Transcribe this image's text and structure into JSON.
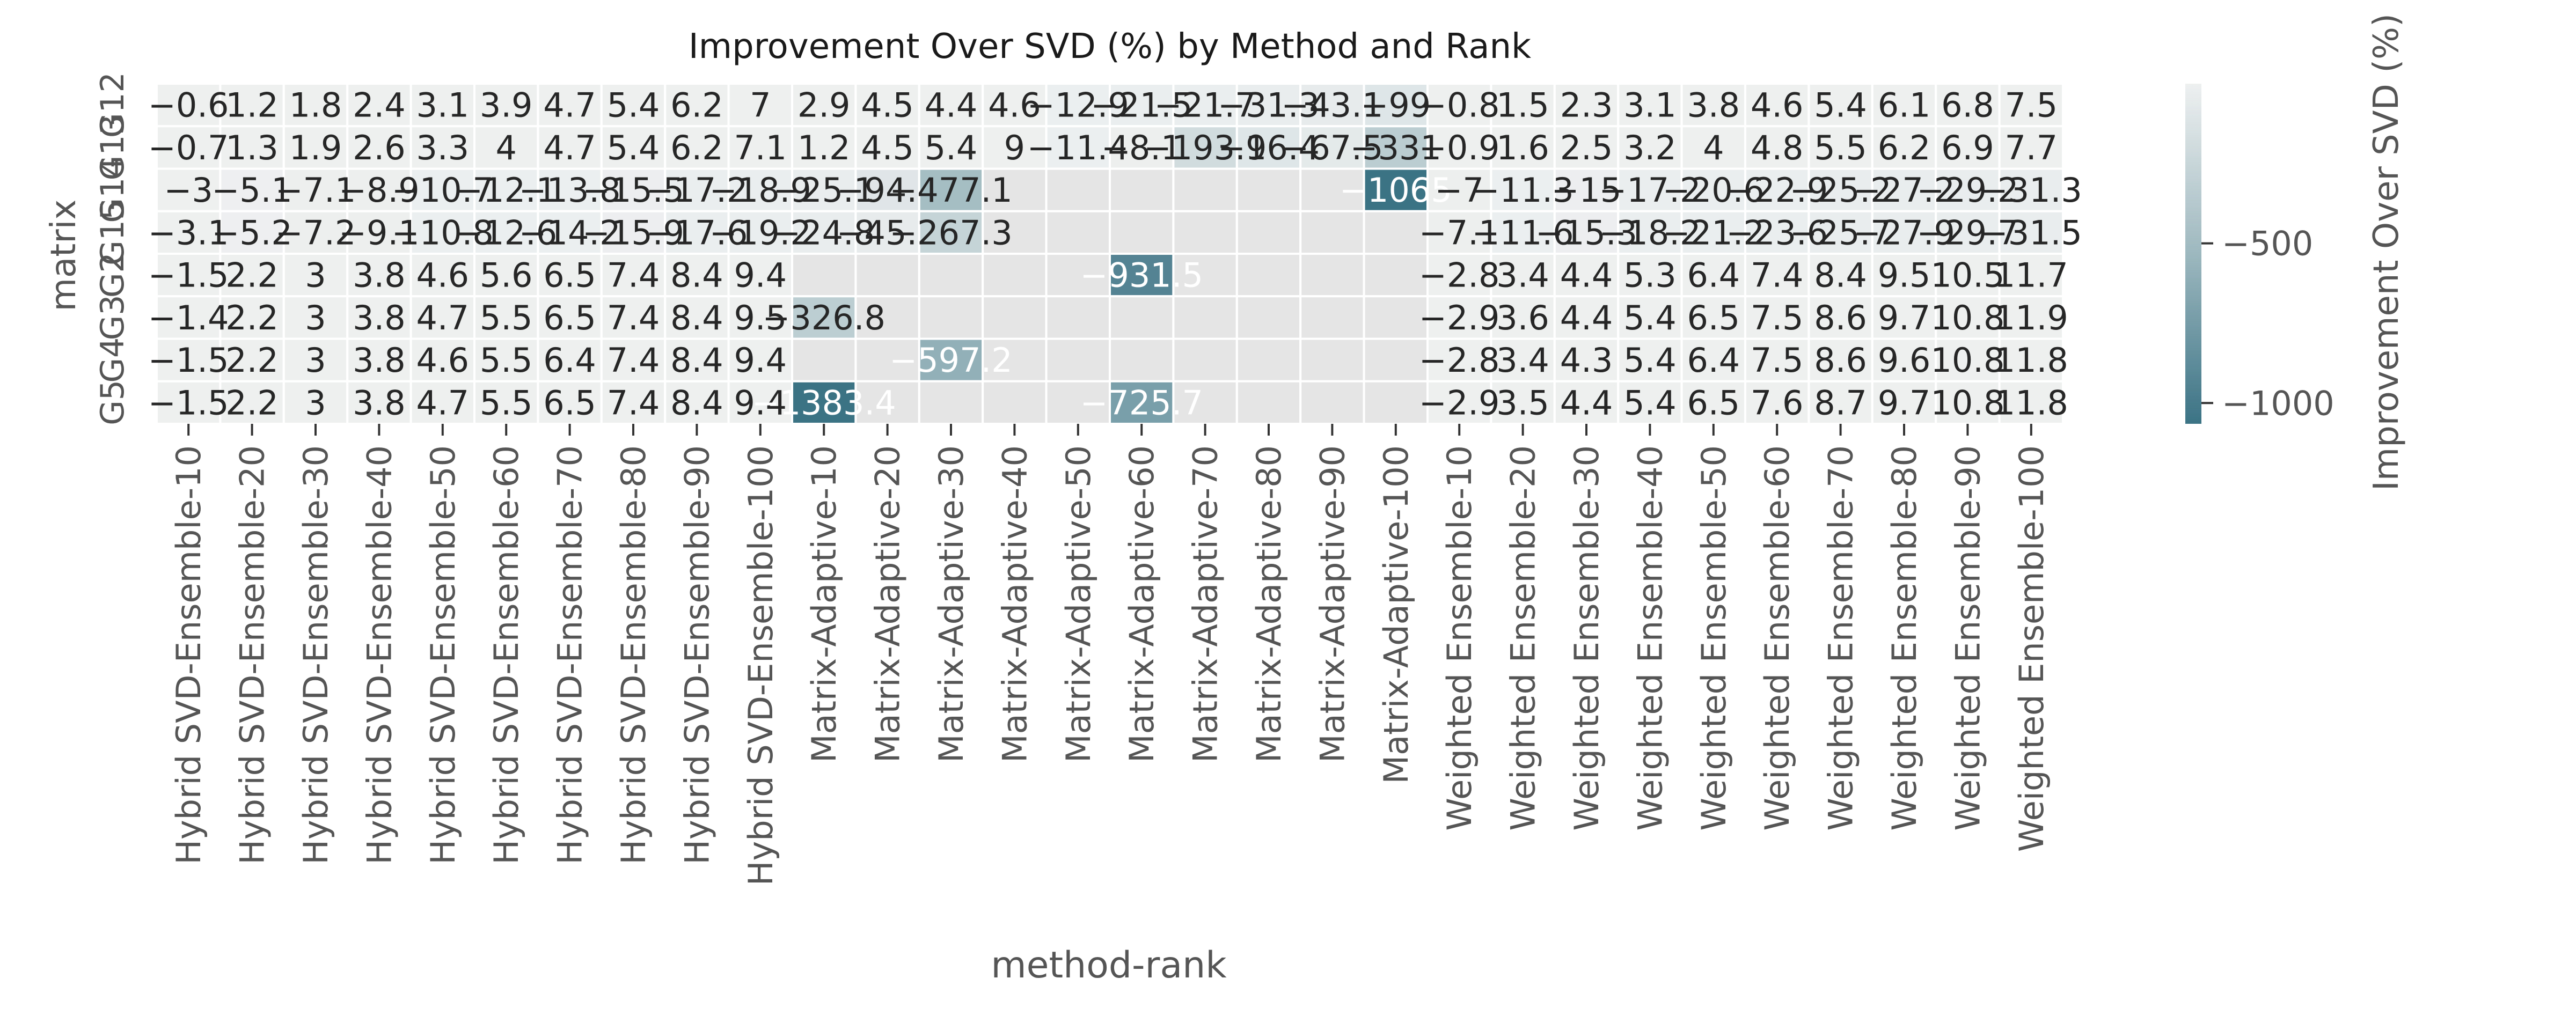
{
  "chart_data": {
    "type": "heatmap",
    "title": "Improvement Over SVD (%) by Method and Rank",
    "xlabel": "method-rank",
    "ylabel": "matrix",
    "colorbar_label": "Improvement Over SVD (%)",
    "colorbar_range": [
      -1065,
      0
    ],
    "colorbar_ticks": [
      -500,
      -1000
    ],
    "grid": true,
    "rows": [
      "G12",
      "G13",
      "G14",
      "G15",
      "G2",
      "G3",
      "G4",
      "G5"
    ],
    "columns": [
      "Hybrid SVD-Ensemble-10",
      "Hybrid SVD-Ensemble-20",
      "Hybrid SVD-Ensemble-30",
      "Hybrid SVD-Ensemble-40",
      "Hybrid SVD-Ensemble-50",
      "Hybrid SVD-Ensemble-60",
      "Hybrid SVD-Ensemble-70",
      "Hybrid SVD-Ensemble-80",
      "Hybrid SVD-Ensemble-90",
      "Hybrid SVD-Ensemble-100",
      "Matrix-Adaptive-10",
      "Matrix-Adaptive-20",
      "Matrix-Adaptive-30",
      "Matrix-Adaptive-40",
      "Matrix-Adaptive-50",
      "Matrix-Adaptive-60",
      "Matrix-Adaptive-70",
      "Matrix-Adaptive-80",
      "Matrix-Adaptive-90",
      "Matrix-Adaptive-100",
      "Weighted Ensemble-10",
      "Weighted Ensemble-20",
      "Weighted Ensemble-30",
      "Weighted Ensemble-40",
      "Weighted Ensemble-50",
      "Weighted Ensemble-60",
      "Weighted Ensemble-70",
      "Weighted Ensemble-80",
      "Weighted Ensemble-90",
      "Weighted Ensemble-100"
    ],
    "values": [
      [
        -0.6,
        1.2,
        1.8,
        2.4,
        3.1,
        3.9,
        4.7,
        5.4,
        6.2,
        7.0,
        2.9,
        4.5,
        4.4,
        4.6,
        -12.9,
        -21.5,
        -21.7,
        -31.3,
        -43.1,
        -99.0,
        -0.8,
        1.5,
        2.3,
        3.1,
        3.8,
        4.6,
        5.4,
        6.1,
        6.8,
        7.5
      ],
      [
        -0.7,
        1.3,
        1.9,
        2.6,
        3.3,
        4.0,
        4.7,
        5.4,
        6.2,
        7.1,
        1.2,
        4.5,
        5.4,
        9.0,
        -11.4,
        -8.1,
        -193.1,
        -96.4,
        -67.5,
        -331.0,
        -0.9,
        1.6,
        2.5,
        3.2,
        4.0,
        4.8,
        5.5,
        6.2,
        6.9,
        7.7
      ],
      [
        -3.0,
        -5.1,
        -7.1,
        -8.9,
        -10.7,
        -12.1,
        -13.8,
        -15.5,
        -17.2,
        -18.9,
        -25.1,
        -94.4,
        -477.1,
        null,
        null,
        null,
        null,
        null,
        null,
        -1065.0,
        -7.0,
        -11.3,
        -15.0,
        -17.2,
        -20.6,
        -22.9,
        -25.2,
        -27.2,
        -29.2,
        -31.3
      ],
      [
        -3.1,
        -5.2,
        -7.2,
        -9.1,
        -10.8,
        -12.6,
        -14.2,
        -15.9,
        -17.6,
        -19.2,
        -24.8,
        -45.2,
        -267.3,
        null,
        null,
        null,
        null,
        null,
        null,
        null,
        -7.1,
        -11.6,
        -15.3,
        -18.2,
        -21.2,
        -23.6,
        -25.7,
        -27.9,
        -29.7,
        -31.5
      ],
      [
        -1.5,
        2.2,
        3.0,
        3.8,
        4.6,
        5.6,
        6.5,
        7.4,
        8.4,
        9.4,
        null,
        null,
        null,
        null,
        null,
        -931.5,
        null,
        null,
        null,
        null,
        -2.8,
        3.4,
        4.4,
        5.3,
        6.4,
        7.4,
        8.4,
        9.5,
        10.5,
        11.7
      ],
      [
        -1.4,
        2.2,
        3.0,
        3.8,
        4.7,
        5.5,
        6.5,
        7.4,
        8.4,
        9.5,
        -326.8,
        null,
        null,
        null,
        null,
        null,
        null,
        null,
        null,
        null,
        -2.9,
        3.6,
        4.4,
        5.4,
        6.5,
        7.5,
        8.6,
        9.7,
        10.8,
        11.9
      ],
      [
        -1.5,
        2.2,
        3.0,
        3.8,
        4.6,
        5.5,
        6.4,
        7.4,
        8.4,
        9.4,
        null,
        null,
        -597.2,
        null,
        null,
        null,
        null,
        null,
        null,
        null,
        -2.8,
        3.4,
        4.3,
        5.4,
        6.4,
        7.5,
        8.6,
        9.6,
        10.8,
        11.8
      ],
      [
        -1.5,
        2.2,
        3.0,
        3.8,
        4.7,
        5.5,
        6.5,
        7.4,
        8.4,
        9.4,
        -1383.4,
        null,
        null,
        null,
        null,
        -725.7,
        null,
        null,
        null,
        null,
        -2.9,
        3.5,
        4.4,
        5.4,
        6.5,
        7.6,
        8.7,
        9.7,
        10.8,
        11.8
      ]
    ],
    "colors": {
      "cmap_light": "#eef0f0",
      "cmap_mid": "#9db8bf",
      "cmap_dark": "#3b7385",
      "missing": "#e5e5e5",
      "text_dark": "#262626",
      "text_light": "#ffffff",
      "axis_text": "#555555"
    }
  }
}
